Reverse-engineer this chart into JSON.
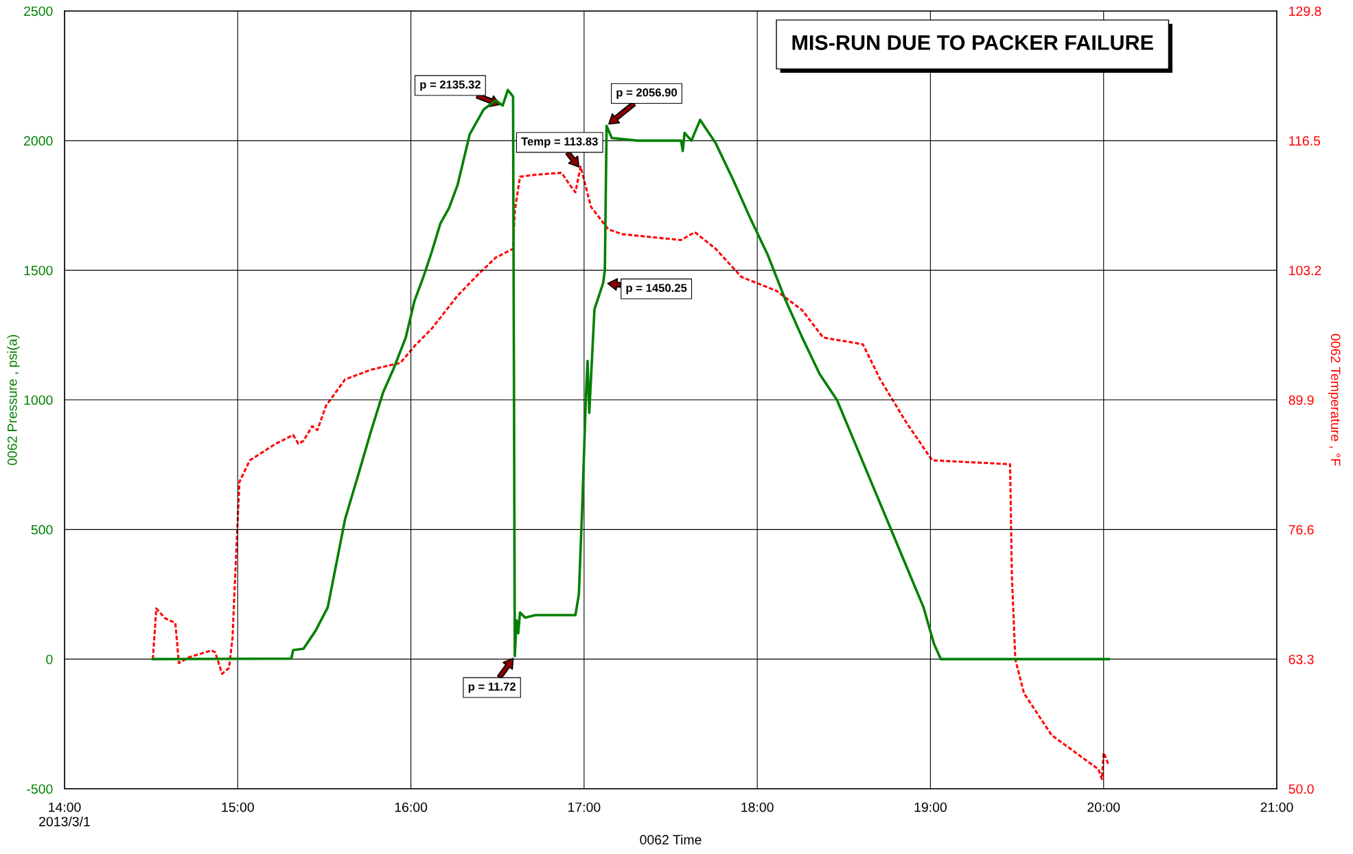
{
  "chart_data": {
    "type": "line",
    "title": "MIS-RUN DUE TO PACKER FAILURE",
    "xlabel": "0062 Time",
    "ylabel": "0062 Pressure , psi(a)",
    "y2label": "0062 Temperature , °F",
    "xlim": [
      14,
      21
    ],
    "xticks": [
      {
        "value": 14,
        "label": "14:00\n2013/3/1"
      },
      {
        "value": 15,
        "label": "15:00"
      },
      {
        "value": 16,
        "label": "16:00"
      },
      {
        "value": 17,
        "label": "17:00"
      },
      {
        "value": 18,
        "label": "18:00"
      },
      {
        "value": 19,
        "label": "19:00"
      },
      {
        "value": 20,
        "label": "20:00"
      },
      {
        "value": 21,
        "label": "21:00"
      }
    ],
    "ylim": [
      -500,
      2500
    ],
    "yticks": [
      -500,
      0,
      500,
      1000,
      1500,
      2000,
      2500
    ],
    "y2lim": [
      50,
      129.8
    ],
    "y2ticks": [
      {
        "value": 50,
        "label": "50.0"
      },
      63.3,
      76.6,
      89.9,
      103.2,
      116.5,
      129.8
    ],
    "grid": true,
    "legend": false,
    "series": [
      {
        "color": "#008000",
        "line_style": "solid",
        "x": [
          14.51,
          15.31,
          15.32,
          15.38,
          15.45,
          15.52,
          15.62,
          15.7,
          15.77,
          15.84,
          15.9,
          15.97,
          16.02,
          16.07,
          16.12,
          16.17,
          16.22,
          16.27,
          16.34,
          16.42,
          16.49,
          16.53,
          16.56,
          16.59,
          16.6,
          16.61,
          16.62,
          16.63,
          16.66,
          16.72,
          16.95,
          16.97,
          16.99,
          17.01,
          17.02,
          17.03,
          17.06,
          17.11,
          17.12,
          17.13,
          17.16,
          17.31,
          17.56,
          17.57,
          17.58,
          17.62,
          17.67,
          17.71,
          17.76,
          17.86,
          17.96,
          18.06,
          18.16,
          18.26,
          18.36,
          18.46,
          18.56,
          18.66,
          18.76,
          18.86,
          18.96,
          19.02,
          19.06,
          20.03
        ],
        "values": [
          0,
          2,
          35,
          40,
          110,
          200,
          540,
          720,
          880,
          1030,
          1120,
          1240,
          1380,
          1470,
          1570,
          1680,
          1740,
          1830,
          2025,
          2120,
          2155,
          2135.32,
          2195,
          2170,
          11.72,
          150,
          100,
          180,
          160,
          170,
          170,
          250,
          600,
          1000,
          1150,
          950,
          1350,
          1450.25,
          1500,
          2056.9,
          2010,
          2000,
          2000,
          1960,
          2030,
          2000,
          2080,
          2040,
          1990,
          1850,
          1700,
          1560,
          1390,
          1240,
          1100,
          1000,
          840,
          680,
          520,
          360,
          200,
          60,
          0,
          0
        ]
      },
      {
        "color": "#ff0000",
        "line_style": "dashed",
        "axis": "y2",
        "x": [
          14.51,
          14.53,
          14.58,
          14.64,
          14.66,
          14.72,
          14.85,
          14.87,
          14.91,
          14.95,
          14.97,
          14.99,
          15.01,
          15.07,
          15.22,
          15.32,
          15.35,
          15.38,
          15.43,
          15.46,
          15.51,
          15.62,
          15.77,
          15.94,
          16.02,
          16.12,
          16.27,
          16.39,
          16.49,
          16.59,
          16.6,
          16.63,
          16.72,
          16.87,
          16.92,
          16.95,
          16.98,
          17.04,
          17.14,
          17.22,
          17.56,
          17.64,
          17.76,
          17.91,
          18.11,
          18.26,
          18.38,
          18.61,
          18.71,
          18.86,
          19.01,
          19.46,
          19.47,
          19.49,
          19.54,
          19.7,
          19.97,
          19.99,
          20.0,
          20.03
        ],
        "values": [
          63.3,
          68.5,
          67.5,
          67.0,
          62.9,
          63.5,
          64.2,
          64.0,
          61.8,
          62.4,
          65.5,
          73.7,
          81.5,
          83.7,
          85.4,
          86.3,
          85.4,
          85.7,
          87.2,
          86.8,
          89.3,
          92.0,
          93.0,
          93.7,
          95.4,
          97.2,
          100.6,
          102.8,
          104.5,
          105.4,
          109.3,
          112.8,
          113.0,
          113.2,
          111.9,
          111.2,
          113.83,
          109.7,
          107.4,
          106.9,
          106.3,
          107.1,
          105.4,
          102.5,
          101.1,
          99.1,
          96.3,
          95.6,
          92.0,
          87.6,
          83.7,
          83.3,
          72.0,
          63.3,
          59.8,
          55.5,
          52.0,
          51.0,
          53.7,
          52.4
        ]
      }
    ],
    "annotations": [
      {
        "text": "p = 2135.32",
        "x": 16.53,
        "y": 2135.32
      },
      {
        "text": "Temp = 113.83",
        "x": 16.98,
        "y": 1890
      },
      {
        "text": "p = 2056.90",
        "x": 17.13,
        "y": 2056.9
      },
      {
        "text": "p = 1450.25",
        "x": 17.12,
        "y": 1450.25
      },
      {
        "text": "p = 11.72",
        "x": 16.6,
        "y": 11.72
      }
    ]
  }
}
